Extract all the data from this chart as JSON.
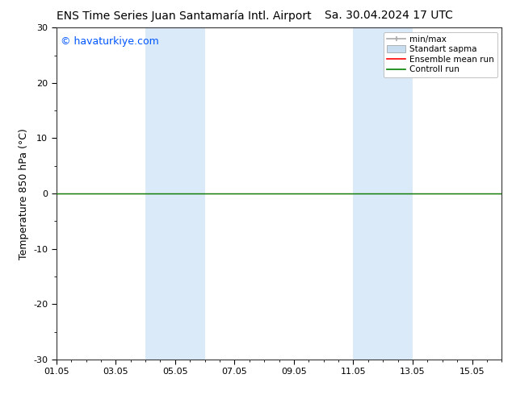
{
  "title": "ENS Time Series Juan Santamaría Intl. Airport     Sa. 30.04.2024 17 UTC",
  "title_left": "ENS Time Series Juan Santamaría Intl. Airport",
  "title_right": "Sa. 30.04.2024 17 UTC",
  "ylabel": "Temperature 850 hPa (°C)",
  "ylim": [
    -30,
    30
  ],
  "yticks": [
    -30,
    -20,
    -10,
    0,
    10,
    20,
    30
  ],
  "xtick_labels": [
    "01.05",
    "03.05",
    "05.05",
    "07.05",
    "09.05",
    "11.05",
    "13.05",
    "15.05"
  ],
  "xtick_positions": [
    0,
    2,
    4,
    6,
    8,
    10,
    12,
    14
  ],
  "xlim": [
    0,
    15
  ],
  "watermark": "© havaturkiye.com",
  "watermark_color": "#0055ff",
  "bg_color": "#ffffff",
  "plot_bg_color": "#ffffff",
  "shaded_regions": [
    {
      "x_start": 3.0,
      "x_end": 5.0,
      "color": "#daeaf8"
    },
    {
      "x_start": 10.0,
      "x_end": 12.0,
      "color": "#daeaf8"
    }
  ],
  "control_run_y": 0.0,
  "control_run_color": "#008000",
  "control_run_lw": 1.0,
  "ensemble_mean_color": "#ff0000",
  "ensemble_mean_lw": 0.8,
  "minmax_color": "#aaaaaa",
  "std_fill_color": "#c8ddf0",
  "legend_labels": [
    "min/max",
    "Standart sapma",
    "Ensemble mean run",
    "Controll run"
  ],
  "legend_colors_line": [
    "#aaaaaa",
    "#c8ddf0",
    "#ff0000",
    "#008000"
  ],
  "title_fontsize": 10,
  "axis_label_fontsize": 9,
  "tick_fontsize": 8,
  "watermark_fontsize": 9,
  "legend_fontsize": 7.5
}
